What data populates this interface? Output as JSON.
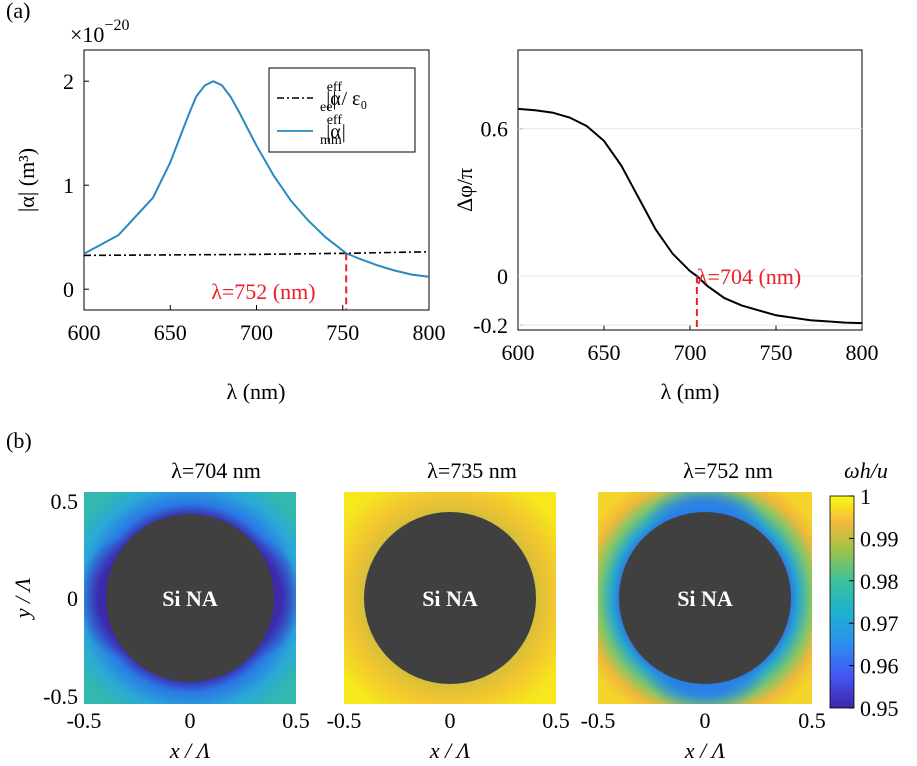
{
  "panel_labels": {
    "a": "(a)",
    "b": "(b)"
  },
  "chart_data": [
    {
      "type": "line",
      "exponent_label": "×10",
      "exponent_power": "−20",
      "ylabel": "|α| (m³)",
      "xlabel": "λ (nm)",
      "xlim": [
        600,
        800
      ],
      "ylim": [
        -0.2,
        2.3
      ],
      "xticks": [
        600,
        650,
        700,
        750,
        800
      ],
      "yticks": [
        0,
        1,
        2
      ],
      "ytick_labels": [
        "0",
        "1",
        "2"
      ],
      "grid": false,
      "legend": "top-right",
      "series": [
        {
          "name": "|α_ee^eff| / ε₀",
          "legend_main": "|α",
          "legend_sup": "eff",
          "legend_sub": "ee",
          "legend_tail": "| / ε₀",
          "color": "#000000",
          "style": "dash-dot",
          "x": [
            600,
            650,
            700,
            752,
            800
          ],
          "y": [
            0.325,
            0.33,
            0.335,
            0.345,
            0.36
          ]
        },
        {
          "name": "|α_mm^eff|",
          "legend_main": "|α",
          "legend_sup": "eff",
          "legend_sub": "mm",
          "legend_tail": "|",
          "color": "#2a88c2",
          "style": "solid",
          "x": [
            600,
            620,
            640,
            650,
            660,
            665,
            670,
            675,
            680,
            685,
            690,
            700,
            710,
            720,
            730,
            740,
            752,
            760,
            770,
            780,
            790,
            800
          ],
          "y": [
            0.34,
            0.52,
            0.88,
            1.22,
            1.65,
            1.85,
            1.96,
            2.0,
            1.96,
            1.85,
            1.7,
            1.38,
            1.09,
            0.85,
            0.66,
            0.5,
            0.345,
            0.29,
            0.23,
            0.18,
            0.14,
            0.12
          ]
        }
      ],
      "annotation": {
        "text": "λ=752 (nm)",
        "x": 752,
        "color": "#e8202a"
      }
    },
    {
      "type": "line",
      "ylabel": "Δφ/π",
      "xlabel": "λ (nm)",
      "xlim": [
        600,
        800
      ],
      "ylim": [
        -0.22,
        0.92
      ],
      "xticks": [
        600,
        650,
        700,
        750,
        800
      ],
      "yticks": [
        -0.2,
        0,
        0.6
      ],
      "ytick_labels": [
        "-0.2",
        "0",
        "0.6"
      ],
      "grid": false,
      "series": [
        {
          "color": "#000000",
          "style": "solid",
          "x": [
            600,
            610,
            620,
            630,
            640,
            650,
            660,
            670,
            680,
            690,
            700,
            704,
            710,
            720,
            730,
            740,
            750,
            760,
            770,
            780,
            790,
            800
          ],
          "y": [
            0.68,
            0.675,
            0.665,
            0.645,
            0.61,
            0.55,
            0.45,
            0.32,
            0.19,
            0.09,
            0.02,
            0.0,
            -0.04,
            -0.09,
            -0.12,
            -0.14,
            -0.16,
            -0.17,
            -0.18,
            -0.185,
            -0.19,
            -0.192
          ]
        }
      ],
      "annotation": {
        "text": "λ=704 (nm)",
        "x": 704,
        "color": "#e8202a"
      }
    },
    {
      "type": "heatmap",
      "colorbar_label": "ωh/u",
      "colorbar_range": [
        0.95,
        1
      ],
      "colorbar_ticks": [
        "1",
        "0.99",
        "0.98",
        "0.97",
        "0.96",
        "0.95"
      ],
      "xlabel": "x / Λ",
      "ylabel": "y / Λ",
      "xticks": [
        "-0.5",
        "0",
        "0.5"
      ],
      "yticks": [
        "0.5",
        "0",
        "-0.5"
      ],
      "particle_label": "Si NA",
      "maps": [
        {
          "title": "λ=704 nm",
          "background_value": 0.972,
          "rim_value": 0.952,
          "anisotropy": "x"
        },
        {
          "title": "λ=735 nm",
          "background_value": 0.997,
          "rim_value": 0.975,
          "anisotropy": "none"
        },
        {
          "title": "λ=752 nm",
          "background_value": 0.99,
          "rim_value": 0.96,
          "anisotropy": "y"
        }
      ]
    }
  ]
}
